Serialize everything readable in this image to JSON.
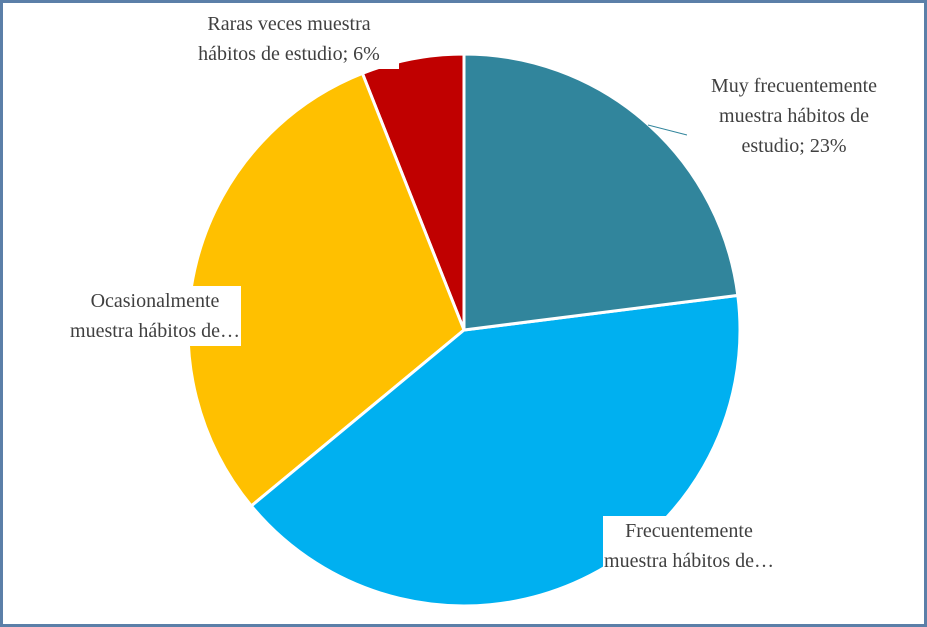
{
  "chart_data": {
    "type": "pie",
    "data_labels": [
      "Muy frecuentemente muestra hábitos de estudio; 23%",
      "Frecuentemente muestra hábitos de…",
      "Ocasionalmente muestra hábitos de…",
      "Raras veces muestra hábitos de estudio; 6%"
    ],
    "values": [
      23,
      41,
      30,
      6
    ],
    "colors": [
      "#31859c",
      "#00b0f0",
      "#ffc000",
      "#c00000"
    ]
  }
}
